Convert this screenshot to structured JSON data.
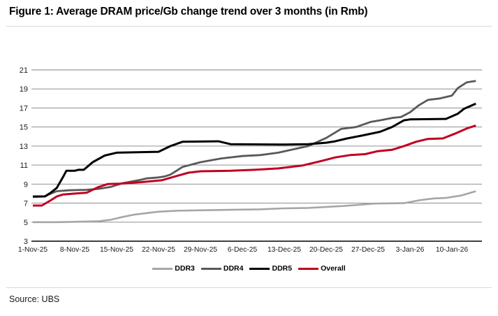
{
  "figure": {
    "title": "Figure 1: Average DRAM price/Gb change trend over 3 months (in Rmb)",
    "source": "Source: UBS"
  },
  "chart_data": {
    "type": "line",
    "title": "Average DRAM price/Gb change trend over 3 months (in Rmb)",
    "xlabel": "",
    "ylabel": "",
    "x_unit": "days since 1-Nov-25",
    "xlim": [
      0,
      75
    ],
    "ylim": [
      3,
      21
    ],
    "grid": "horizontal",
    "legend_position": "bottom-center",
    "y_ticks": [
      3,
      5,
      7,
      9,
      11,
      13,
      15,
      17,
      19,
      21
    ],
    "x_ticks": [
      {
        "day": 0,
        "label": "1-Nov-25"
      },
      {
        "day": 7,
        "label": "8-Nov-25"
      },
      {
        "day": 14,
        "label": "15-Nov-25"
      },
      {
        "day": 21,
        "label": "22-Nov-25"
      },
      {
        "day": 28,
        "label": "29-Nov-25"
      },
      {
        "day": 35,
        "label": "6-Dec-25"
      },
      {
        "day": 42,
        "label": "13-Dec-25"
      },
      {
        "day": 49,
        "label": "20-Dec-25"
      },
      {
        "day": 56,
        "label": "27-Dec-25"
      },
      {
        "day": 63,
        "label": "3-Jan-26"
      },
      {
        "day": 70,
        "label": "10-Jan-26"
      }
    ],
    "series": [
      {
        "name": "DDR3",
        "color": "#a6a6a6",
        "width": 2.6,
        "points": [
          [
            0,
            5.0
          ],
          [
            4,
            5.0
          ],
          [
            8,
            5.05
          ],
          [
            11,
            5.1
          ],
          [
            13,
            5.25
          ],
          [
            15,
            5.55
          ],
          [
            17,
            5.8
          ],
          [
            19,
            5.95
          ],
          [
            21,
            6.1
          ],
          [
            24,
            6.2
          ],
          [
            28,
            6.25
          ],
          [
            33,
            6.3
          ],
          [
            38,
            6.35
          ],
          [
            42,
            6.45
          ],
          [
            46,
            6.5
          ],
          [
            52,
            6.7
          ],
          [
            57,
            6.95
          ],
          [
            62,
            7.0
          ],
          [
            64.5,
            7.3
          ],
          [
            67,
            7.5
          ],
          [
            69,
            7.55
          ],
          [
            71.5,
            7.8
          ],
          [
            74,
            8.25
          ]
        ]
      },
      {
        "name": "DDR4",
        "color": "#595959",
        "width": 2.8,
        "points": [
          [
            0,
            7.65
          ],
          [
            2,
            7.7
          ],
          [
            3,
            8.0
          ],
          [
            4,
            8.25
          ],
          [
            6,
            8.35
          ],
          [
            9,
            8.4
          ],
          [
            11,
            8.5
          ],
          [
            13,
            8.7
          ],
          [
            14,
            8.9
          ],
          [
            15,
            9.1
          ],
          [
            18,
            9.45
          ],
          [
            19,
            9.6
          ],
          [
            21,
            9.7
          ],
          [
            22,
            9.8
          ],
          [
            23,
            10.0
          ],
          [
            25,
            10.8
          ],
          [
            28,
            11.3
          ],
          [
            31.5,
            11.7
          ],
          [
            35,
            11.95
          ],
          [
            38,
            12.05
          ],
          [
            41,
            12.3
          ],
          [
            46,
            13.0
          ],
          [
            49,
            13.85
          ],
          [
            51.5,
            14.8
          ],
          [
            54,
            15.0
          ],
          [
            56.5,
            15.55
          ],
          [
            58,
            15.7
          ],
          [
            60,
            15.95
          ],
          [
            61.5,
            16.05
          ],
          [
            63,
            16.55
          ],
          [
            64.5,
            17.3
          ],
          [
            66,
            17.85
          ],
          [
            68,
            18.0
          ],
          [
            70,
            18.3
          ],
          [
            71,
            19.1
          ],
          [
            72.5,
            19.7
          ],
          [
            74,
            19.85
          ]
        ]
      },
      {
        "name": "DDR5",
        "color": "#000000",
        "width": 3.0,
        "points": [
          [
            0,
            7.7
          ],
          [
            2,
            7.7
          ],
          [
            3,
            8.1
          ],
          [
            4,
            8.6
          ],
          [
            5,
            9.7
          ],
          [
            5.6,
            10.4
          ],
          [
            7,
            10.4
          ],
          [
            7.6,
            10.5
          ],
          [
            8.5,
            10.5
          ],
          [
            10,
            11.3
          ],
          [
            12,
            12.0
          ],
          [
            14,
            12.3
          ],
          [
            21,
            12.4
          ],
          [
            23,
            13.0
          ],
          [
            25,
            13.45
          ],
          [
            31,
            13.5
          ],
          [
            33,
            13.2
          ],
          [
            42,
            13.15
          ],
          [
            46,
            13.2
          ],
          [
            49,
            13.35
          ],
          [
            50.5,
            13.5
          ],
          [
            52.5,
            13.8
          ],
          [
            55,
            14.1
          ],
          [
            58,
            14.5
          ],
          [
            60,
            15.0
          ],
          [
            62,
            15.7
          ],
          [
            63,
            15.8
          ],
          [
            69,
            15.85
          ],
          [
            71,
            16.4
          ],
          [
            72,
            16.9
          ],
          [
            74,
            17.45
          ]
        ]
      },
      {
        "name": "Overall",
        "color": "#c00020",
        "width": 3.0,
        "points": [
          [
            0,
            6.75
          ],
          [
            1.5,
            6.75
          ],
          [
            3,
            7.3
          ],
          [
            4,
            7.7
          ],
          [
            5,
            7.9
          ],
          [
            7,
            8.0
          ],
          [
            9,
            8.1
          ],
          [
            11,
            8.7
          ],
          [
            12.5,
            9.0
          ],
          [
            14.5,
            9.05
          ],
          [
            18,
            9.2
          ],
          [
            21.5,
            9.4
          ],
          [
            24,
            9.85
          ],
          [
            26,
            10.2
          ],
          [
            28,
            10.35
          ],
          [
            33,
            10.4
          ],
          [
            37,
            10.5
          ],
          [
            41,
            10.65
          ],
          [
            45,
            10.95
          ],
          [
            48,
            11.4
          ],
          [
            50.5,
            11.8
          ],
          [
            53,
            12.05
          ],
          [
            55.5,
            12.15
          ],
          [
            57.5,
            12.45
          ],
          [
            60,
            12.6
          ],
          [
            62,
            13.0
          ],
          [
            64,
            13.45
          ],
          [
            66,
            13.75
          ],
          [
            68.5,
            13.8
          ],
          [
            70.5,
            14.3
          ],
          [
            72.5,
            14.85
          ],
          [
            74,
            15.15
          ]
        ]
      }
    ]
  }
}
